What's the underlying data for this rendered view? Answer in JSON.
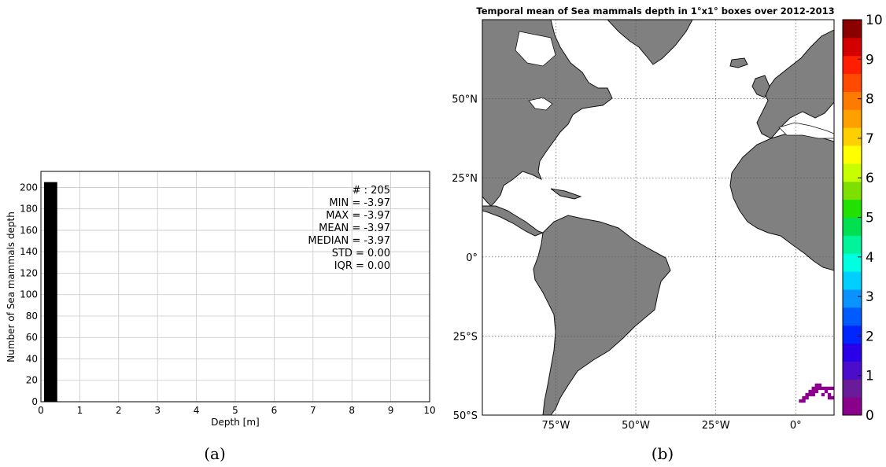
{
  "chart_data": [
    {
      "type": "bar",
      "panel_label": "(a)",
      "xlabel": "Depth [m]",
      "ylabel": "Number of Sea mammals depth",
      "xlim": [
        0,
        10
      ],
      "ylim": [
        0,
        215
      ],
      "xticks": [
        "0",
        "1",
        "2",
        "3",
        "4",
        "5",
        "6",
        "7",
        "8",
        "9",
        "10"
      ],
      "yticks": [
        "0",
        "20",
        "40",
        "60",
        "80",
        "100",
        "120",
        "140",
        "160",
        "180",
        "200"
      ],
      "grid": true,
      "bars": [
        {
          "x0": 0.08,
          "x1": 0.42,
          "value": 205
        }
      ],
      "stats": [
        "# : 205",
        "MIN = -3.97",
        "MAX =  -3.97",
        "MEAN = -3.97",
        "MEDIAN = -3.97",
        "STD = 0.00",
        "IQR = 0.00"
      ]
    },
    {
      "type": "heatmap",
      "panel_label": "(b)",
      "title": "Temporal mean of Sea mammals depth in 1°x1° boxes over 2012-2013",
      "lon_ticks": [
        {
          "value": -75,
          "label": "75°W"
        },
        {
          "value": -50,
          "label": "50°W"
        },
        {
          "value": -25,
          "label": "25°W"
        },
        {
          "value": 0,
          "label": "0°"
        }
      ],
      "lat_ticks": [
        {
          "value": 50,
          "label": "50°N"
        },
        {
          "value": 25,
          "label": "25°N"
        },
        {
          "value": 0,
          "label": "0°"
        },
        {
          "value": -25,
          "label": "25°S"
        },
        {
          "value": -50,
          "label": "50°S"
        }
      ],
      "lon_range": [
        -98,
        12
      ],
      "lat_range": [
        -50,
        75
      ],
      "colorbar": {
        "min": 0,
        "max": 10,
        "ticks": [
          "0",
          "1",
          "2",
          "3",
          "4",
          "5",
          "6",
          "7",
          "8",
          "9",
          "10"
        ],
        "colors": [
          "#8b008b",
          "#6a1b9a",
          "#4b0ccc",
          "#2a00e8",
          "#0026ff",
          "#005bff",
          "#0a93ff",
          "#00cfff",
          "#00ffe0",
          "#00f59a",
          "#00e050",
          "#22e000",
          "#7ee000",
          "#c8ff00",
          "#ffff00",
          "#ffd000",
          "#ffa000",
          "#ff7a00",
          "#ff4a00",
          "#ff1e00",
          "#d40000",
          "#8b0000"
        ]
      },
      "data_cells": [
        {
          "lat": -46,
          "lon": 1
        },
        {
          "lat": -46,
          "lon": 2
        },
        {
          "lat": -45,
          "lon": 2
        },
        {
          "lat": -45,
          "lon": 3
        },
        {
          "lat": -44,
          "lon": 3
        },
        {
          "lat": -44,
          "lon": 4
        },
        {
          "lat": -44,
          "lon": 5
        },
        {
          "lat": -43,
          "lon": 4
        },
        {
          "lat": -43,
          "lon": 5
        },
        {
          "lat": -43,
          "lon": 6
        },
        {
          "lat": -42,
          "lon": 5
        },
        {
          "lat": -42,
          "lon": 6
        },
        {
          "lat": -42,
          "lon": 7
        },
        {
          "lat": -42,
          "lon": 8
        },
        {
          "lat": -42,
          "lon": 9
        },
        {
          "lat": -42,
          "lon": 10
        },
        {
          "lat": -42,
          "lon": 11
        },
        {
          "lat": -41,
          "lon": 6
        },
        {
          "lat": -41,
          "lon": 7
        },
        {
          "lat": -43,
          "lon": 9
        },
        {
          "lat": -44,
          "lon": 10
        },
        {
          "lat": -45,
          "lon": 10
        },
        {
          "lat": -45,
          "lon": 11
        },
        {
          "lat": -44,
          "lon": 8
        }
      ],
      "data_value": 0
    }
  ]
}
